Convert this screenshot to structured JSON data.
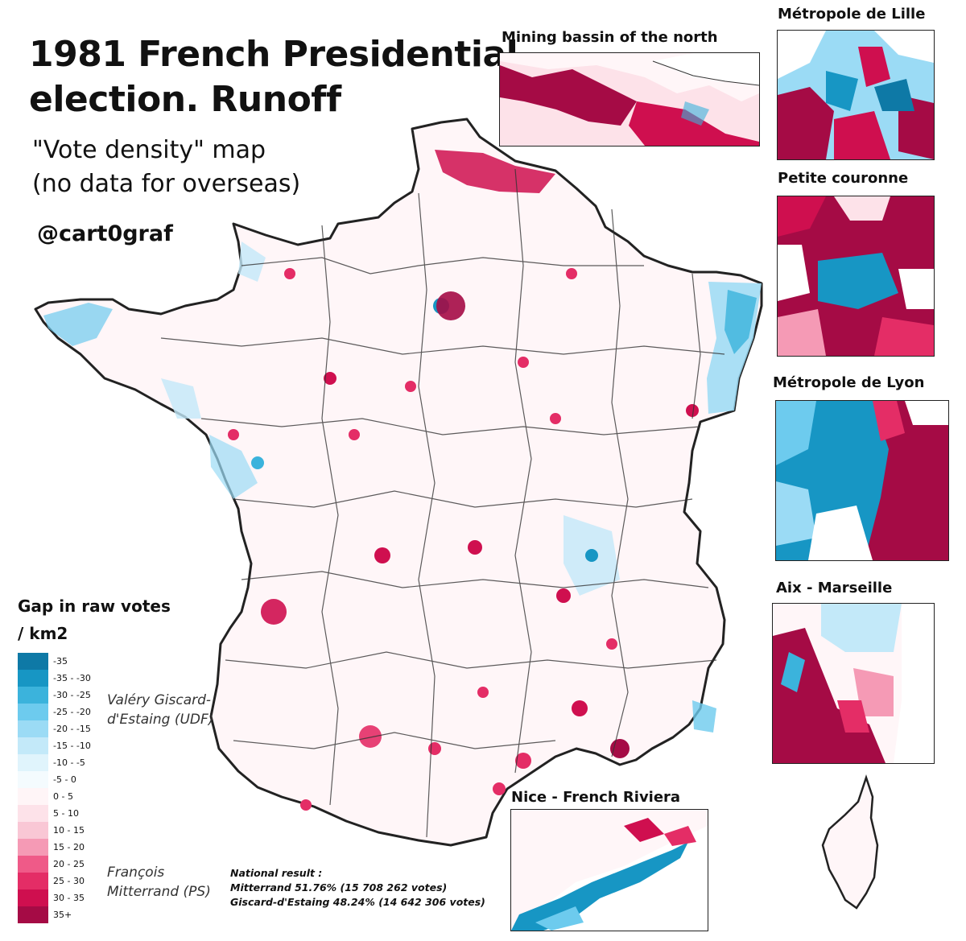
{
  "title_line1": "1981 French Presidential",
  "title_line2": "election. Runoff",
  "subtitle_line1": "\"Vote density\" map",
  "subtitle_line2": "(no data for overseas)",
  "handle": "@cart0graf",
  "insets": {
    "mining": "Mining bassin of the north",
    "lille": "Métropole de Lille",
    "petite": "Petite couronne",
    "lyon": "Métropole de Lyon",
    "aix": "Aix - Marseille",
    "nice": "Nice - French Riviera"
  },
  "legend": {
    "title_line1": "Gap in raw votes",
    "title_line2": "/ km2",
    "items": [
      {
        "label": "-35",
        "color": "#0e79a6"
      },
      {
        "label": "-35 - -30",
        "color": "#1796c4"
      },
      {
        "label": "-30 - -25",
        "color": "#3bb3dc"
      },
      {
        "label": "-25 - -20",
        "color": "#6dcbee"
      },
      {
        "label": "-20 - -15",
        "color": "#9bdbf5"
      },
      {
        "label": "-15 - -10",
        "color": "#c3e9f9"
      },
      {
        "label": "-10 - -5",
        "color": "#e0f4fc"
      },
      {
        "label": "-5 - 0",
        "color": "#f4fbfe"
      },
      {
        "label": "0 - 5",
        "color": "#fff5f7"
      },
      {
        "label": "5 - 10",
        "color": "#fde2e9"
      },
      {
        "label": "10 - 15",
        "color": "#f9c7d5"
      },
      {
        "label": "15 - 20",
        "color": "#f59ab5"
      },
      {
        "label": "20 - 25",
        "color": "#ef5a88"
      },
      {
        "label": "25 - 30",
        "color": "#e42d66"
      },
      {
        "label": "30 - 35",
        "color": "#cf0f4f"
      },
      {
        "label": "35+",
        "color": "#a50b45"
      }
    ]
  },
  "candidates": {
    "giscard_line1": "Valéry Giscard-",
    "giscard_line2": "d'Estaing (UDF)",
    "mitterrand_line1": "François",
    "mitterrand_line2": "Mitterrand (PS)"
  },
  "national": {
    "heading": "National result :",
    "mitterrand": "Mitterrand 51.76% (15 708 262 votes)",
    "giscard": "Giscard-d'Estaing 48.24% (14 642 306 votes)"
  },
  "colors": {
    "giscard_strong": "#0e79a6",
    "giscard_light": "#9bdbf5",
    "mitterrand_strong": "#a50b45",
    "mitterrand_mid": "#e42d66",
    "mitterrand_light": "#f9c7d5",
    "neutral": "#fff5f7"
  }
}
